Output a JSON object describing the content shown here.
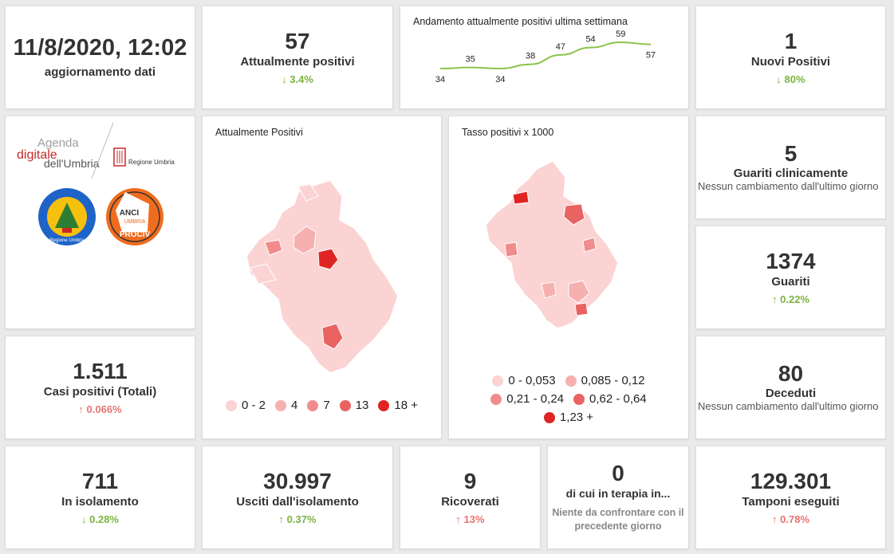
{
  "update": {
    "date": "11/8/2020, 12:02",
    "label": "aggiornamento dati"
  },
  "attualmente_positivi": {
    "value": "57",
    "label": "Attualmente positivi",
    "delta": "3.4%",
    "delta_dir": "down"
  },
  "trend": {
    "title": "Andamento attualmente positivi ultima settimana",
    "chart_data": {
      "type": "line",
      "values": [
        34,
        35,
        34,
        38,
        47,
        54,
        59,
        57
      ],
      "color": "#8bc34a"
    }
  },
  "nuovi_positivi": {
    "value": "1",
    "label": "Nuovi Positivi",
    "delta": "80%",
    "delta_dir": "down"
  },
  "logos": {
    "agenda_line1": "Agenda",
    "agenda_line2": "digitale",
    "agenda_line3": "dell'Umbria",
    "regione": "Regione Umbria",
    "protezione": "Protezione civile",
    "protezione_sub": "Regione Umbria",
    "anci": "ANCI",
    "anci_sub": "UMBRIA",
    "prociv": "PROCIV"
  },
  "map1": {
    "title": "Attualmente Positivi",
    "legend": [
      {
        "label": "0 - 2",
        "color": "#fbd3d3"
      },
      {
        "label": "4",
        "color": "#f7b0b0"
      },
      {
        "label": "7",
        "color": "#f08c8c"
      },
      {
        "label": "13",
        "color": "#ea6363"
      },
      {
        "label": "18 +",
        "color": "#e02424"
      }
    ]
  },
  "map2": {
    "title": "Tasso positivi x 1000",
    "legend": [
      {
        "label": "0 - 0,053",
        "color": "#fbd3d3"
      },
      {
        "label": "0,085 - 0,12",
        "color": "#f7b0b0"
      },
      {
        "label": "0,21 - 0,24",
        "color": "#f08c8c"
      },
      {
        "label": "0,62 - 0,64",
        "color": "#ea6363"
      },
      {
        "label": "1,23 +",
        "color": "#e02424"
      }
    ]
  },
  "guariti_clinicamente": {
    "value": "5",
    "label": "Guariti clinicamente",
    "note": "Nessun cambiamento dall'ultimo giorno"
  },
  "guariti": {
    "value": "1374",
    "label": "Guariti",
    "delta": "0.22%",
    "delta_dir": "up"
  },
  "casi_totali": {
    "value": "1.511",
    "label": "Casi positivi (Totali)",
    "delta": "0.066%",
    "delta_dir": "up"
  },
  "deceduti": {
    "value": "80",
    "label": "Deceduti",
    "note": "Nessun cambiamento dall'ultimo giorno"
  },
  "isolamento": {
    "value": "711",
    "label": "In isolamento",
    "delta": "0.28%",
    "delta_dir": "down"
  },
  "usciti": {
    "value": "30.997",
    "label": "Usciti dall'isolamento",
    "delta": "0.37%",
    "delta_dir": "up"
  },
  "ricoverati": {
    "value": "9",
    "label": "Ricoverati",
    "delta": "13%",
    "delta_dir": "up"
  },
  "terapia": {
    "value": "0",
    "label": "di cui in terapia in...",
    "note": "Niente da confrontare con il precedente giorno"
  },
  "tamponi": {
    "value": "129.301",
    "label": "Tamponi eseguiti",
    "delta": "0.78%",
    "delta_dir": "up"
  },
  "icons": {
    "up": "↑",
    "down": "↓"
  }
}
